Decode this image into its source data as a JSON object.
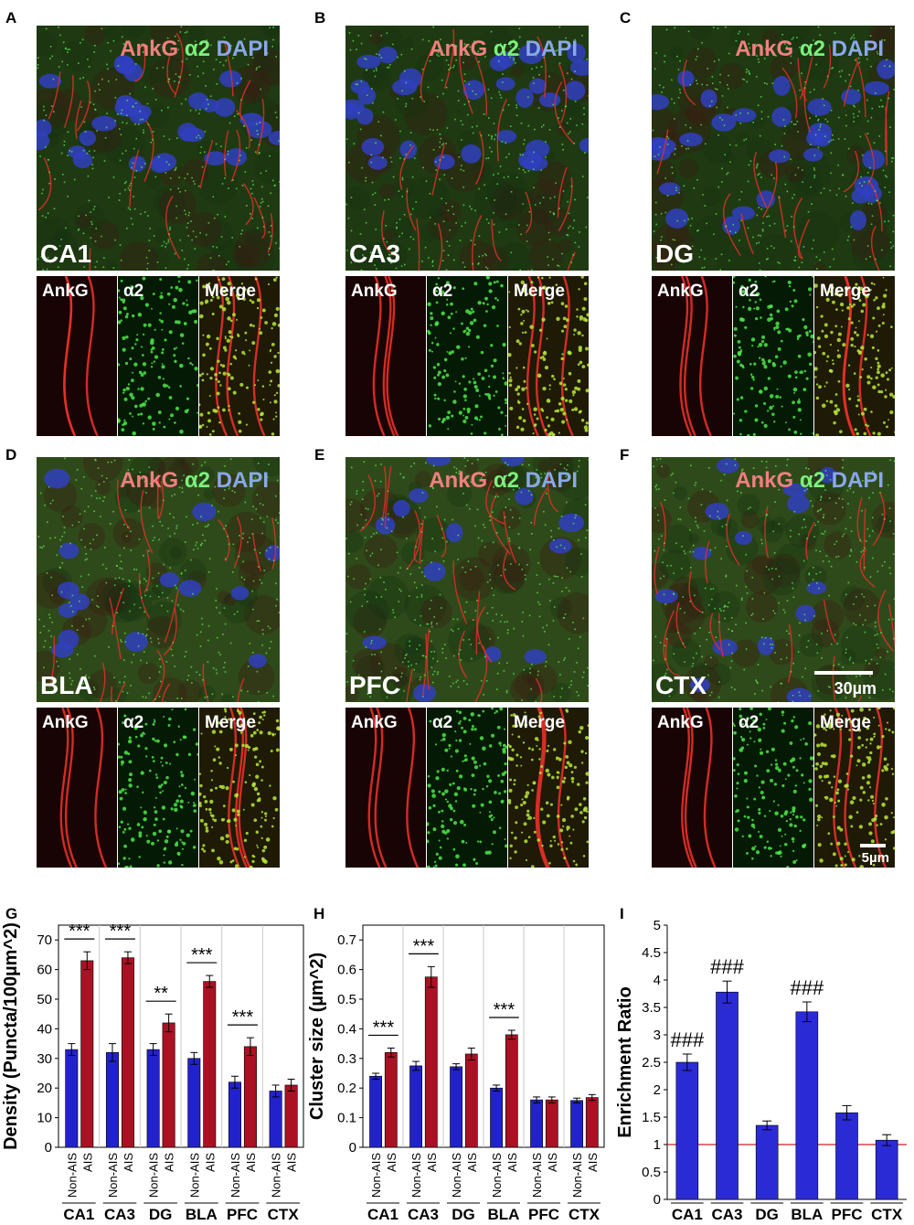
{
  "panels": [
    {
      "letter": "A",
      "region": "CA1"
    },
    {
      "letter": "B",
      "region": "CA3"
    },
    {
      "letter": "C",
      "region": "DG"
    },
    {
      "letter": "D",
      "region": "BLA"
    },
    {
      "letter": "E",
      "region": "PFC"
    },
    {
      "letter": "F",
      "region": "CTX"
    }
  ],
  "stain_labels": {
    "ankg": "AnkG",
    "a2": "α2",
    "dapi": "DAPI"
  },
  "inset_labels": {
    "ankg": "AnkG",
    "a2": "α2",
    "merge": "Merge"
  },
  "scale_bars": {
    "large": "30µm",
    "small": "5µm"
  },
  "chart_letters": {
    "g": "G",
    "h": "H",
    "i": "I"
  },
  "colors": {
    "non_ais": "#2222cc",
    "ais": "#aa1122",
    "ratio_bar": "#2b2bd6",
    "baseline": "#cc2222"
  },
  "chart_data": [
    {
      "type": "bar",
      "ylabel": "Density (Puncta/100µm^2)",
      "ylim": [
        0,
        75
      ],
      "yticks": [
        0,
        10,
        20,
        30,
        40,
        50,
        60,
        70
      ],
      "categories": [
        "CA1",
        "CA3",
        "DG",
        "BLA",
        "PFC",
        "CTX"
      ],
      "bar_labels": [
        "Non-AIS",
        "AIS"
      ],
      "series": [
        {
          "name": "Non-AIS",
          "values": [
            33,
            32,
            33,
            30,
            22,
            19
          ],
          "errors": [
            2,
            3,
            2,
            2,
            2,
            2
          ]
        },
        {
          "name": "AIS",
          "values": [
            63,
            64,
            42,
            56,
            34,
            21
          ],
          "errors": [
            3,
            2,
            3,
            2,
            3,
            2
          ]
        }
      ],
      "annotations": [
        "***",
        "***",
        "**",
        "***",
        "***",
        ""
      ]
    },
    {
      "type": "bar",
      "ylabel": "Cluster size (µm^2)",
      "ylim": [
        0,
        0.75
      ],
      "yticks": [
        "0",
        "0.1",
        "0.2",
        "0.3",
        "0.4",
        "0.5",
        "0.6",
        "0.7"
      ],
      "categories": [
        "CA1",
        "CA3",
        "DG",
        "BLA",
        "PFC",
        "CTX"
      ],
      "bar_labels": [
        "Non-AIS",
        "AIS"
      ],
      "series": [
        {
          "name": "Non-AIS",
          "values": [
            0.24,
            0.275,
            0.272,
            0.2,
            0.16,
            0.158
          ],
          "errors": [
            0.01,
            0.015,
            0.01,
            0.01,
            0.01,
            0.008
          ]
        },
        {
          "name": "AIS",
          "values": [
            0.32,
            0.575,
            0.315,
            0.38,
            0.16,
            0.168
          ],
          "errors": [
            0.015,
            0.035,
            0.02,
            0.015,
            0.01,
            0.01
          ]
        }
      ],
      "annotations": [
        "***",
        "***",
        "",
        "***",
        "",
        ""
      ]
    },
    {
      "type": "bar",
      "ylabel": "Enrichment Ratio",
      "ylim": [
        0,
        5
      ],
      "yticks": [
        "0",
        "0.5",
        "1",
        "1.5",
        "2",
        "2.5",
        "3",
        "3.5",
        "4",
        "4.5",
        "5"
      ],
      "categories": [
        "CA1",
        "CA3",
        "DG",
        "BLA",
        "PFC",
        "CTX"
      ],
      "values": [
        2.5,
        3.78,
        1.35,
        3.42,
        1.58,
        1.08
      ],
      "errors": [
        0.15,
        0.2,
        0.08,
        0.18,
        0.13,
        0.1
      ],
      "annotations": [
        "###",
        "###",
        "",
        "###",
        "",
        ""
      ],
      "reference_line": 1
    }
  ]
}
